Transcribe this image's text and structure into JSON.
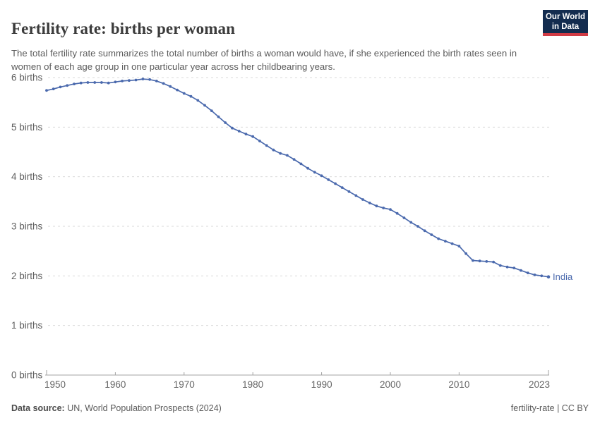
{
  "header": {
    "title": "Fertility rate: births per woman",
    "subtitle": "The total fertility rate summarizes the total number of births a woman would have, if she experienced the birth rates seen in women of each age group in one particular year across her childbearing years.",
    "logo": {
      "line1": "Our World",
      "line2": "in Data",
      "bg_color": "#132c4f",
      "accent_color": "#d13b45"
    }
  },
  "footer": {
    "datasource_label": "Data source:",
    "datasource_value": " UN, World Population Prospects (2024)",
    "license": "fertility-rate | CC BY"
  },
  "chart_data": {
    "type": "line",
    "title": "Fertility rate: births per woman",
    "entity": "India",
    "xlabel": "",
    "ylabel": "",
    "xlim": [
      1950,
      2023
    ],
    "ylim": [
      0,
      6
    ],
    "grid": "dashed-horizontal",
    "legend_position": "end-of-line-label",
    "line_color": "#4a69ad",
    "grid_color": "#dadada",
    "axis_color": "#a3a3a3",
    "y_ticks": [
      {
        "value": 0,
        "label": "0 births"
      },
      {
        "value": 1,
        "label": "1 births"
      },
      {
        "value": 2,
        "label": "2 births"
      },
      {
        "value": 3,
        "label": "3 births"
      },
      {
        "value": 4,
        "label": "4 births"
      },
      {
        "value": 5,
        "label": "5 births"
      },
      {
        "value": 6,
        "label": "6 births"
      }
    ],
    "x_ticks": [
      1950,
      1960,
      1970,
      1980,
      1990,
      2000,
      2010,
      2023
    ],
    "years": [
      1950,
      1951,
      1952,
      1953,
      1954,
      1955,
      1956,
      1957,
      1958,
      1959,
      1960,
      1961,
      1962,
      1963,
      1964,
      1965,
      1966,
      1967,
      1968,
      1969,
      1970,
      1971,
      1972,
      1973,
      1974,
      1975,
      1976,
      1977,
      1978,
      1979,
      1980,
      1981,
      1982,
      1983,
      1984,
      1985,
      1986,
      1987,
      1988,
      1989,
      1990,
      1991,
      1992,
      1993,
      1994,
      1995,
      1996,
      1997,
      1998,
      1999,
      2000,
      2001,
      2002,
      2003,
      2004,
      2005,
      2006,
      2007,
      2008,
      2009,
      2010,
      2011,
      2012,
      2013,
      2014,
      2015,
      2016,
      2017,
      2018,
      2019,
      2020,
      2021,
      2022,
      2023
    ],
    "values": [
      5.74,
      5.77,
      5.81,
      5.84,
      5.87,
      5.89,
      5.9,
      5.9,
      5.9,
      5.89,
      5.91,
      5.93,
      5.94,
      5.95,
      5.97,
      5.96,
      5.93,
      5.88,
      5.82,
      5.75,
      5.68,
      5.62,
      5.54,
      5.44,
      5.33,
      5.21,
      5.09,
      4.98,
      4.92,
      4.86,
      4.81,
      4.72,
      4.63,
      4.54,
      4.47,
      4.43,
      4.35,
      4.26,
      4.17,
      4.09,
      4.02,
      3.94,
      3.86,
      3.78,
      3.7,
      3.62,
      3.54,
      3.47,
      3.41,
      3.37,
      3.34,
      3.26,
      3.17,
      3.08,
      3.0,
      2.91,
      2.83,
      2.75,
      2.7,
      2.65,
      2.6,
      2.45,
      2.31,
      2.3,
      2.29,
      2.28,
      2.21,
      2.18,
      2.16,
      2.11,
      2.06,
      2.02,
      2.0,
      1.98
    ]
  }
}
